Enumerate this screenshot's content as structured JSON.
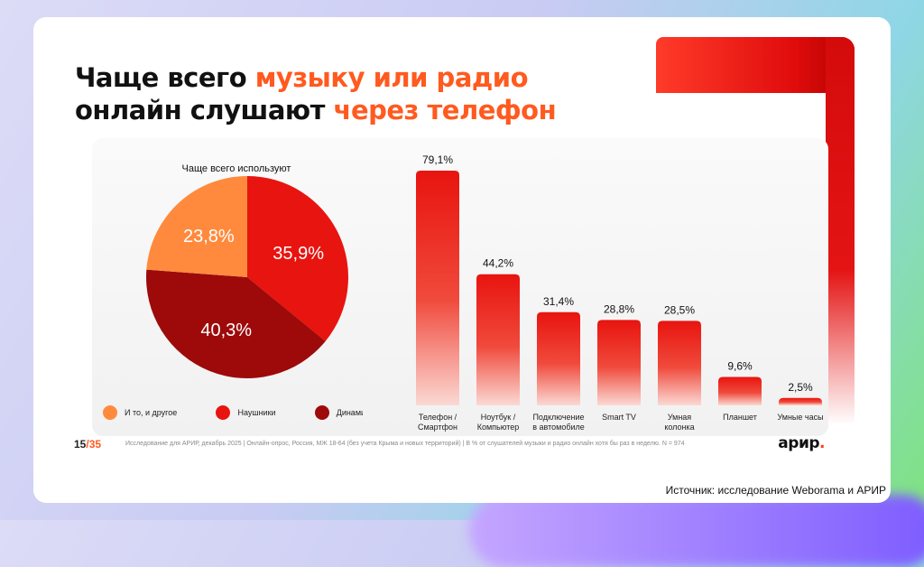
{
  "title": {
    "line1_dark": "Чаще всего ",
    "line1_accent": "музыку или радио",
    "line2_dark": "онлайн слушают ",
    "line2_accent": "через телефон"
  },
  "colors": {
    "accent": "#ff5a1f",
    "red": "#e8140f",
    "orange": "#ff8a3d",
    "dark_red": "#9e0a0a"
  },
  "chart_data": [
    {
      "type": "pie",
      "title": "Чаще всего используют",
      "slices": [
        {
          "name": "Наушники",
          "value": 35.9,
          "label": "35,9%",
          "color": "#e8140f"
        },
        {
          "name": "Динамики",
          "value": 40.3,
          "label": "40,3%",
          "color": "#9e0a0a"
        },
        {
          "name": "И то, и другое",
          "value": 23.8,
          "label": "23,8%",
          "color": "#ff8a3d"
        }
      ],
      "legend": [
        "И то, и другое",
        "Наушники",
        "Динамики"
      ],
      "legend_position": "bottom"
    },
    {
      "type": "bar",
      "categories": [
        [
          "Телефон /",
          "Смартфон"
        ],
        [
          "Ноутбук /",
          "Компьютер"
        ],
        [
          "Подключение",
          "в автомобиле"
        ],
        [
          "Smart TV"
        ],
        [
          "Умная",
          "колонка"
        ],
        [
          "Планшет"
        ],
        [
          "Умные часы"
        ]
      ],
      "values": [
        79.1,
        44.2,
        31.4,
        28.8,
        28.5,
        9.6,
        2.5
      ],
      "value_labels": [
        "79,1%",
        "44,2%",
        "31,4%",
        "28,8%",
        "28,5%",
        "9,6%",
        "2,5%"
      ],
      "ylim": [
        0,
        79.1
      ],
      "grid": false
    }
  ],
  "footer": {
    "page_current": "15",
    "page_sep": "/",
    "page_total": "35",
    "note": "Исследование для АРИР, декабрь 2025   |   Онлайн-опрос, Россия, МЖ 18-64 (без учета Крыма и новых территорий)   |   В % от слушателей музыки и радио онлайн хотя бы раз в неделю. N = 974",
    "logo_text": "арир",
    "logo_dot": "."
  },
  "source": "Источник: исследование Weborama и АРИР"
}
